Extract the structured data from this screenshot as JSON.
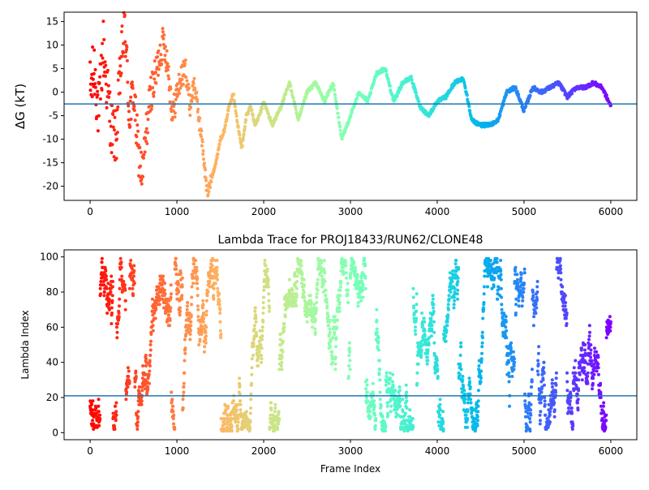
{
  "chart_data": [
    {
      "type": "scatter",
      "title": "",
      "xlabel": "",
      "ylabel": "ΔG (kT)",
      "xlim": [
        -300,
        6300
      ],
      "ylim": [
        -23,
        17
      ],
      "xticks": [
        0,
        1000,
        2000,
        3000,
        4000,
        5000,
        6000
      ],
      "yticks": [
        -20,
        -15,
        -10,
        -5,
        0,
        5,
        10,
        15
      ],
      "hline": -2.5,
      "hline_color": "#1f77b4",
      "colormap": "rainbow (reversed with frame index: red at 0, violet at 6000)",
      "grid": false,
      "legend": "none",
      "series": [
        {
          "points_x": [
            0,
            50,
            100,
            150,
            200,
            250,
            300,
            350,
            400,
            450,
            500,
            550,
            600,
            650,
            700,
            750,
            800,
            850,
            900,
            950,
            1000,
            1050,
            1100,
            1150,
            1200,
            1250,
            1300,
            1350,
            1400,
            1450,
            1500,
            1550,
            1600,
            1650,
            1700,
            1750,
            1800,
            1850,
            1900,
            1950,
            2000,
            2100,
            2200,
            2300,
            2400,
            2500,
            2600,
            2700,
            2800,
            2900,
            3000,
            3100,
            3200,
            3300,
            3400,
            3500,
            3600,
            3700,
            3800,
            3900,
            4000,
            4100,
            4200,
            4300,
            4400,
            4500,
            4600,
            4700,
            4800,
            4900,
            5000,
            5100,
            5200,
            5300,
            5400,
            5500,
            5600,
            5700,
            5800,
            5900,
            6000
          ],
          "points_y": [
            0,
            5,
            -5,
            10,
            0,
            -8,
            -10,
            5,
            15,
            -5,
            0,
            -12,
            -18,
            -8,
            0,
            3,
            8,
            11,
            5,
            -5,
            0,
            3,
            5,
            -3,
            2,
            -5,
            -12,
            -22,
            -18,
            -15,
            -10,
            -8,
            -3,
            0,
            -7,
            -12,
            -5,
            -3,
            -7,
            -5,
            -2,
            -7,
            -3,
            2,
            -6,
            0,
            2,
            -2,
            2,
            -10,
            -5,
            0,
            -2,
            4,
            5,
            -2,
            2,
            3,
            -3,
            -5,
            -2,
            -1,
            2,
            3,
            -6,
            -7,
            -7,
            -6,
            0,
            1,
            -4,
            1,
            0,
            1,
            2,
            -1,
            1,
            1,
            2,
            1,
            -3
          ]
        }
      ]
    },
    {
      "type": "scatter",
      "title": "Lambda Trace for PROJ18433/RUN62/CLONE48",
      "xlabel": "Frame Index",
      "ylabel": "Lambda Index",
      "xlim": [
        -300,
        6300
      ],
      "ylim": [
        -4,
        104
      ],
      "xticks": [
        0,
        1000,
        2000,
        3000,
        4000,
        5000,
        6000
      ],
      "yticks": [
        0,
        20,
        40,
        60,
        80,
        100
      ],
      "hline": 21,
      "hline_color": "#1f77b4",
      "colormap": "rainbow (reversed with frame index: red at 0, violet at 6000)",
      "grid": false,
      "legend": "none",
      "frame_range": [
        0,
        6000
      ],
      "lambda_range": [
        1,
        99
      ]
    }
  ]
}
